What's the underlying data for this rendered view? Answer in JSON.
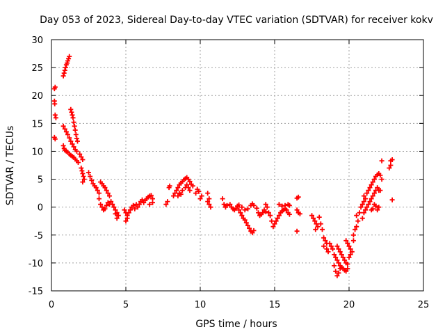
{
  "chart_data": {
    "type": "scatter",
    "title": "Day 053 of 2023, Sidereal Day-to-day VTEC variation (SDTVAR) for receiver kokv",
    "xlabel": "GPS time / hours",
    "ylabel": "SDTVAR / TECUs",
    "xlim": [
      0,
      25
    ],
    "ylim": [
      -15,
      30
    ],
    "xticks": [
      "0",
      "5",
      "10",
      "15",
      "20",
      "25"
    ],
    "yticks": [
      "-15",
      "-10",
      "-5",
      "0",
      "5",
      "10",
      "15",
      "20",
      "25",
      "30"
    ],
    "grid": true,
    "marker": "+",
    "color": "#ff0000",
    "series": [
      {
        "name": "SDTVAR",
        "points": [
          [
            0.2,
            21.2
          ],
          [
            0.25,
            21.5
          ],
          [
            0.2,
            19
          ],
          [
            0.22,
            18.5
          ],
          [
            0.25,
            16.5
          ],
          [
            0.3,
            16
          ],
          [
            0.2,
            12.5
          ],
          [
            0.25,
            12.2
          ],
          [
            0.8,
            23.5
          ],
          [
            0.85,
            24
          ],
          [
            0.9,
            24.5
          ],
          [
            0.95,
            25
          ],
          [
            1.0,
            25.5
          ],
          [
            1.05,
            25.8
          ],
          [
            1.1,
            26.2
          ],
          [
            1.15,
            26.6
          ],
          [
            1.2,
            27
          ],
          [
            1.3,
            17.5
          ],
          [
            1.35,
            17
          ],
          [
            1.4,
            16.5
          ],
          [
            1.45,
            16
          ],
          [
            1.5,
            15.2
          ],
          [
            1.55,
            14.5
          ],
          [
            1.6,
            13.8
          ],
          [
            1.65,
            13
          ],
          [
            1.7,
            12.3
          ],
          [
            1.75,
            11.8
          ],
          [
            0.8,
            14.5
          ],
          [
            0.9,
            14
          ],
          [
            1.0,
            13.5
          ],
          [
            1.1,
            13
          ],
          [
            1.2,
            12.4
          ],
          [
            1.3,
            11.8
          ],
          [
            1.4,
            11.3
          ],
          [
            1.5,
            10.8
          ],
          [
            1.6,
            10.3
          ],
          [
            1.7,
            10
          ],
          [
            0.8,
            11
          ],
          [
            0.85,
            10.5
          ],
          [
            0.9,
            10.2
          ],
          [
            1.0,
            10
          ],
          [
            1.1,
            9.8
          ],
          [
            1.2,
            9.5
          ],
          [
            1.3,
            9.3
          ],
          [
            1.4,
            9.1
          ],
          [
            1.5,
            8.9
          ],
          [
            1.6,
            8.6
          ],
          [
            1.7,
            8.3
          ],
          [
            1.8,
            8
          ],
          [
            1.9,
            9.5
          ],
          [
            2.0,
            9
          ],
          [
            2.1,
            8.5
          ],
          [
            2.0,
            7
          ],
          [
            2.05,
            6.5
          ],
          [
            2.1,
            6
          ],
          [
            2.15,
            5.5
          ],
          [
            2.2,
            5
          ],
          [
            2.1,
            4.5
          ],
          [
            2.5,
            6.2
          ],
          [
            2.6,
            5.5
          ],
          [
            2.7,
            4.8
          ],
          [
            2.8,
            4.2
          ],
          [
            2.9,
            3.8
          ],
          [
            3.0,
            3.5
          ],
          [
            3.1,
            3
          ],
          [
            3.2,
            2.5
          ],
          [
            3.3,
            4.5
          ],
          [
            3.4,
            4.2
          ],
          [
            3.5,
            3.8
          ],
          [
            3.6,
            3.5
          ],
          [
            3.7,
            3
          ],
          [
            3.8,
            2.5
          ],
          [
            3.9,
            2
          ],
          [
            3.2,
            1.5
          ],
          [
            3.3,
            0.5
          ],
          [
            3.4,
            0
          ],
          [
            3.5,
            -0.5
          ],
          [
            3.6,
            -0.3
          ],
          [
            3.7,
            0.3
          ],
          [
            3.8,
            0.8
          ],
          [
            3.9,
            0.5
          ],
          [
            4.0,
            1
          ],
          [
            4.1,
            0.5
          ],
          [
            4.2,
            0
          ],
          [
            4.3,
            -0.5
          ],
          [
            4.4,
            -1
          ],
          [
            4.5,
            -1.5
          ],
          [
            4.4,
            -2
          ],
          [
            4.3,
            -1.2
          ],
          [
            4.9,
            -0.5
          ],
          [
            5.0,
            -1
          ],
          [
            5.1,
            -1.5
          ],
          [
            5.0,
            -2.5
          ],
          [
            5.1,
            -2
          ],
          [
            5.2,
            -1
          ],
          [
            5.3,
            -0.5
          ],
          [
            5.4,
            0
          ],
          [
            5.5,
            0.3
          ],
          [
            5.6,
            -0.3
          ],
          [
            5.7,
            0.5
          ],
          [
            5.8,
            0
          ],
          [
            5.9,
            0.5
          ],
          [
            6.0,
            1
          ],
          [
            6.1,
            1.3
          ],
          [
            6.2,
            0.8
          ],
          [
            6.3,
            1.2
          ],
          [
            6.4,
            1.5
          ],
          [
            6.5,
            1.8
          ],
          [
            6.6,
            2
          ],
          [
            6.7,
            2.1
          ],
          [
            6.8,
            1.5
          ],
          [
            6.6,
            0.5
          ],
          [
            6.8,
            0.8
          ],
          [
            7.7,
            0.5
          ],
          [
            7.8,
            1
          ],
          [
            7.9,
            3.5
          ],
          [
            7.95,
            3.8
          ],
          [
            8.2,
            2
          ],
          [
            8.3,
            2.5
          ],
          [
            8.4,
            3
          ],
          [
            8.5,
            3.5
          ],
          [
            8.6,
            4
          ],
          [
            8.7,
            4.3
          ],
          [
            8.8,
            4.6
          ],
          [
            8.9,
            4.9
          ],
          [
            9.0,
            5.1
          ],
          [
            9.1,
            5.3
          ],
          [
            9.2,
            5
          ],
          [
            9.3,
            4.6
          ],
          [
            9.4,
            4.1
          ],
          [
            9.5,
            3.8
          ],
          [
            8.5,
            2
          ],
          [
            8.6,
            2.5
          ],
          [
            8.7,
            2.3
          ],
          [
            8.8,
            3
          ],
          [
            9.0,
            3.5
          ],
          [
            9.1,
            4
          ],
          [
            9.2,
            3.5
          ],
          [
            9.3,
            3
          ],
          [
            9.7,
            2.5
          ],
          [
            9.8,
            3.2
          ],
          [
            9.9,
            2.8
          ],
          [
            10.0,
            1.5
          ],
          [
            10.1,
            2
          ],
          [
            10.5,
            2.5
          ],
          [
            10.6,
            1.5
          ],
          [
            10.6,
            0.5
          ],
          [
            10.7,
            0
          ],
          [
            10.5,
            1
          ],
          [
            11.5,
            1.5
          ],
          [
            11.6,
            0.5
          ],
          [
            11.7,
            0
          ],
          [
            11.8,
            0.3
          ],
          [
            12.0,
            0.5
          ],
          [
            12.1,
            0
          ],
          [
            12.2,
            -0.3
          ],
          [
            12.3,
            -0.5
          ],
          [
            12.4,
            -0.2
          ],
          [
            12.5,
            0.2
          ],
          [
            12.6,
            -0.5
          ],
          [
            12.7,
            -1
          ],
          [
            12.8,
            -1.5
          ],
          [
            12.9,
            -2
          ],
          [
            13.0,
            -2.3
          ],
          [
            13.1,
            -2.8
          ],
          [
            13.2,
            -3.3
          ],
          [
            13.3,
            -3.8
          ],
          [
            13.4,
            -4.3
          ],
          [
            13.5,
            -4.6
          ],
          [
            13.6,
            -4.2
          ],
          [
            12.6,
            0.4
          ],
          [
            12.8,
            0
          ],
          [
            13.0,
            -0.5
          ],
          [
            13.2,
            -0.3
          ],
          [
            13.4,
            0.3
          ],
          [
            13.5,
            0.6
          ],
          [
            13.6,
            0.3
          ],
          [
            13.8,
            -0.2
          ],
          [
            13.9,
            -1
          ],
          [
            14.0,
            -1.5
          ],
          [
            14.1,
            -1.3
          ],
          [
            14.2,
            -1
          ],
          [
            14.3,
            -0.5
          ],
          [
            14.4,
            -0.8
          ],
          [
            14.4,
            0.5
          ],
          [
            14.5,
            0
          ],
          [
            14.6,
            -1
          ],
          [
            14.7,
            -1.5
          ],
          [
            14.8,
            -2.5
          ],
          [
            14.9,
            -3.5
          ],
          [
            15.0,
            -3
          ],
          [
            15.1,
            -2.5
          ],
          [
            15.2,
            -2
          ],
          [
            15.3,
            -1.5
          ],
          [
            15.4,
            -1
          ],
          [
            15.5,
            -0.7
          ],
          [
            15.6,
            -0.5
          ],
          [
            15.7,
            -0.3
          ],
          [
            15.8,
            -0.5
          ],
          [
            15.9,
            -1
          ],
          [
            16.0,
            -1.3
          ],
          [
            15.3,
            0.5
          ],
          [
            15.5,
            0.2
          ],
          [
            15.7,
            0.3
          ],
          [
            15.9,
            0.5
          ],
          [
            16.0,
            0.3
          ],
          [
            16.5,
            -0.5
          ],
          [
            16.6,
            -1
          ],
          [
            16.7,
            -1.2
          ],
          [
            16.5,
            1.6
          ],
          [
            16.6,
            1.8
          ],
          [
            16.5,
            -4.3
          ],
          [
            17.5,
            -1.5
          ],
          [
            17.6,
            -2
          ],
          [
            17.7,
            -2.5
          ],
          [
            17.8,
            -3
          ],
          [
            17.9,
            -3.5
          ],
          [
            17.75,
            -4
          ],
          [
            18.0,
            -1.8
          ],
          [
            18.1,
            -3
          ],
          [
            18.2,
            -4
          ],
          [
            18.3,
            -5.5
          ],
          [
            18.4,
            -6
          ],
          [
            18.5,
            -6.5
          ],
          [
            18.3,
            -7
          ],
          [
            18.6,
            -8
          ],
          [
            18.5,
            -7.5
          ],
          [
            18.7,
            -6.5
          ],
          [
            18.8,
            -7
          ],
          [
            18.9,
            -7.5
          ],
          [
            19.0,
            -8.5
          ],
          [
            19.1,
            -9
          ],
          [
            19.2,
            -9.5
          ],
          [
            19.3,
            -10
          ],
          [
            19.4,
            -10.5
          ],
          [
            19.5,
            -10.8
          ],
          [
            19.6,
            -11
          ],
          [
            19.7,
            -11.3
          ],
          [
            19.8,
            -11.5
          ],
          [
            19.9,
            -11
          ],
          [
            19.0,
            -10.5
          ],
          [
            19.1,
            -11.5
          ],
          [
            19.2,
            -12.3
          ],
          [
            19.3,
            -11.8
          ],
          [
            19.4,
            -11
          ],
          [
            19.2,
            -7
          ],
          [
            19.3,
            -7.5
          ],
          [
            19.4,
            -8
          ],
          [
            19.5,
            -8.5
          ],
          [
            19.6,
            -9
          ],
          [
            19.7,
            -9.5
          ],
          [
            19.8,
            -10
          ],
          [
            19.9,
            -10.2
          ],
          [
            20.0,
            -9
          ],
          [
            20.1,
            -8.5
          ],
          [
            19.8,
            -6
          ],
          [
            19.9,
            -6.5
          ],
          [
            20.0,
            -7
          ],
          [
            20.1,
            -7.5
          ],
          [
            20.2,
            -8
          ],
          [
            20.3,
            -6
          ],
          [
            20.3,
            -5
          ],
          [
            20.4,
            -4
          ],
          [
            20.5,
            -3.5
          ],
          [
            20.6,
            -2.5
          ],
          [
            20.5,
            -1.5
          ],
          [
            20.7,
            -1
          ],
          [
            20.8,
            0
          ],
          [
            20.9,
            0.5
          ],
          [
            21.0,
            1
          ],
          [
            21.1,
            1.5
          ],
          [
            21.0,
            2
          ],
          [
            21.2,
            2.5
          ],
          [
            21.3,
            3
          ],
          [
            21.4,
            3.5
          ],
          [
            21.5,
            4
          ],
          [
            21.6,
            4.5
          ],
          [
            21.7,
            5
          ],
          [
            21.8,
            5.5
          ],
          [
            21.9,
            5.8
          ],
          [
            22.0,
            6
          ],
          [
            22.1,
            5.7
          ],
          [
            22.2,
            5
          ],
          [
            20.9,
            -2
          ],
          [
            21.0,
            -1
          ],
          [
            21.1,
            -0.5
          ],
          [
            21.2,
            0
          ],
          [
            21.3,
            0.5
          ],
          [
            21.4,
            1
          ],
          [
            21.5,
            1.5
          ],
          [
            21.6,
            2
          ],
          [
            21.7,
            2.5
          ],
          [
            21.8,
            3
          ],
          [
            21.9,
            3.5
          ],
          [
            22.0,
            3
          ],
          [
            22.1,
            3
          ],
          [
            21.5,
            -0.5
          ],
          [
            21.6,
            -0.3
          ],
          [
            21.7,
            0.5
          ],
          [
            21.8,
            0.2
          ],
          [
            21.9,
            -0.5
          ],
          [
            22.0,
            0
          ],
          [
            22.2,
            8.3
          ],
          [
            22.8,
            8.3
          ],
          [
            22.9,
            8.5
          ],
          [
            22.8,
            7.5
          ],
          [
            22.7,
            7
          ],
          [
            22.9,
            1.3
          ]
        ]
      }
    ]
  }
}
